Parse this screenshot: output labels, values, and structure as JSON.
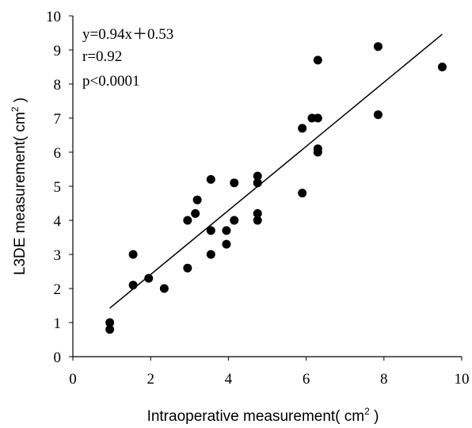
{
  "chart_data": {
    "type": "scatter",
    "xlabel": "Intraoperative measurement( cm",
    "xlabel_sup": "2",
    "xlabel_end": " )",
    "ylabel": "L3DE measurement( cm",
    "ylabel_sup": "2",
    "ylabel_end": " )",
    "xlim": [
      0,
      10
    ],
    "ylim": [
      0,
      10
    ],
    "xticks": [
      "0",
      "2",
      "4",
      "6",
      "8",
      "10"
    ],
    "yticks": [
      "0",
      "1",
      "2",
      "3",
      "4",
      "5",
      "6",
      "7",
      "8",
      "9",
      "10"
    ],
    "grid": false,
    "points": [
      {
        "x": 0.95,
        "y": 1.0
      },
      {
        "x": 0.95,
        "y": 0.8
      },
      {
        "x": 1.55,
        "y": 3.0
      },
      {
        "x": 1.55,
        "y": 2.1
      },
      {
        "x": 1.95,
        "y": 2.3
      },
      {
        "x": 2.35,
        "y": 2.0
      },
      {
        "x": 2.95,
        "y": 4.0
      },
      {
        "x": 2.95,
        "y": 2.6
      },
      {
        "x": 3.15,
        "y": 4.2
      },
      {
        "x": 3.2,
        "y": 4.6
      },
      {
        "x": 3.55,
        "y": 5.2
      },
      {
        "x": 3.55,
        "y": 3.7
      },
      {
        "x": 3.55,
        "y": 3.0
      },
      {
        "x": 3.95,
        "y": 3.7
      },
      {
        "x": 3.95,
        "y": 3.3
      },
      {
        "x": 4.15,
        "y": 5.1
      },
      {
        "x": 4.15,
        "y": 4.0
      },
      {
        "x": 4.75,
        "y": 5.3
      },
      {
        "x": 4.75,
        "y": 5.1
      },
      {
        "x": 4.75,
        "y": 4.2
      },
      {
        "x": 4.75,
        "y": 4.0
      },
      {
        "x": 5.9,
        "y": 6.7
      },
      {
        "x": 5.9,
        "y": 4.8
      },
      {
        "x": 6.15,
        "y": 7.0
      },
      {
        "x": 6.3,
        "y": 8.7
      },
      {
        "x": 6.3,
        "y": 7.0
      },
      {
        "x": 6.3,
        "y": 6.1
      },
      {
        "x": 6.3,
        "y": 6.0
      },
      {
        "x": 7.85,
        "y": 9.1
      },
      {
        "x": 7.85,
        "y": 7.1
      },
      {
        "x": 9.5,
        "y": 8.5
      }
    ],
    "fit_line": {
      "slope": 0.94,
      "intercept": 0.53,
      "x_range": [
        0.95,
        9.5
      ]
    },
    "annotations": [
      "y=0.94x＋0.53",
      "r=0.92",
      "p<0.0001"
    ]
  }
}
